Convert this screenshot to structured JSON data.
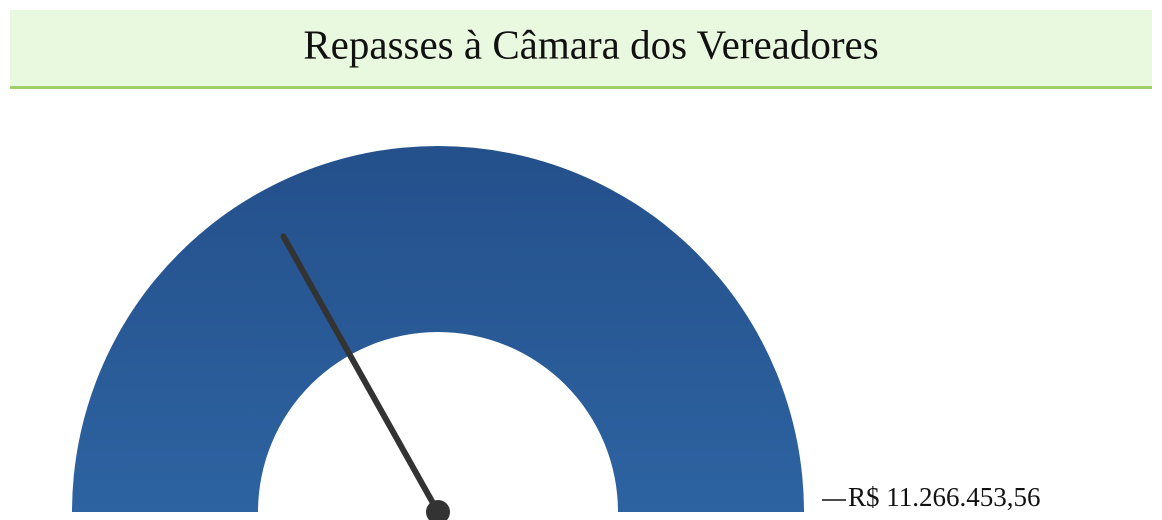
{
  "chart_data": {
    "type": "gauge",
    "title": "Repasses à Câmara dos Vereadores",
    "value": 3800000,
    "color": "#27548f",
    "ylim": [
      0,
      11266453.56
    ],
    "yticks": [
      {
        "value": 11266453.56,
        "label": "R$ 11.266.453,56"
      }
    ]
  }
}
